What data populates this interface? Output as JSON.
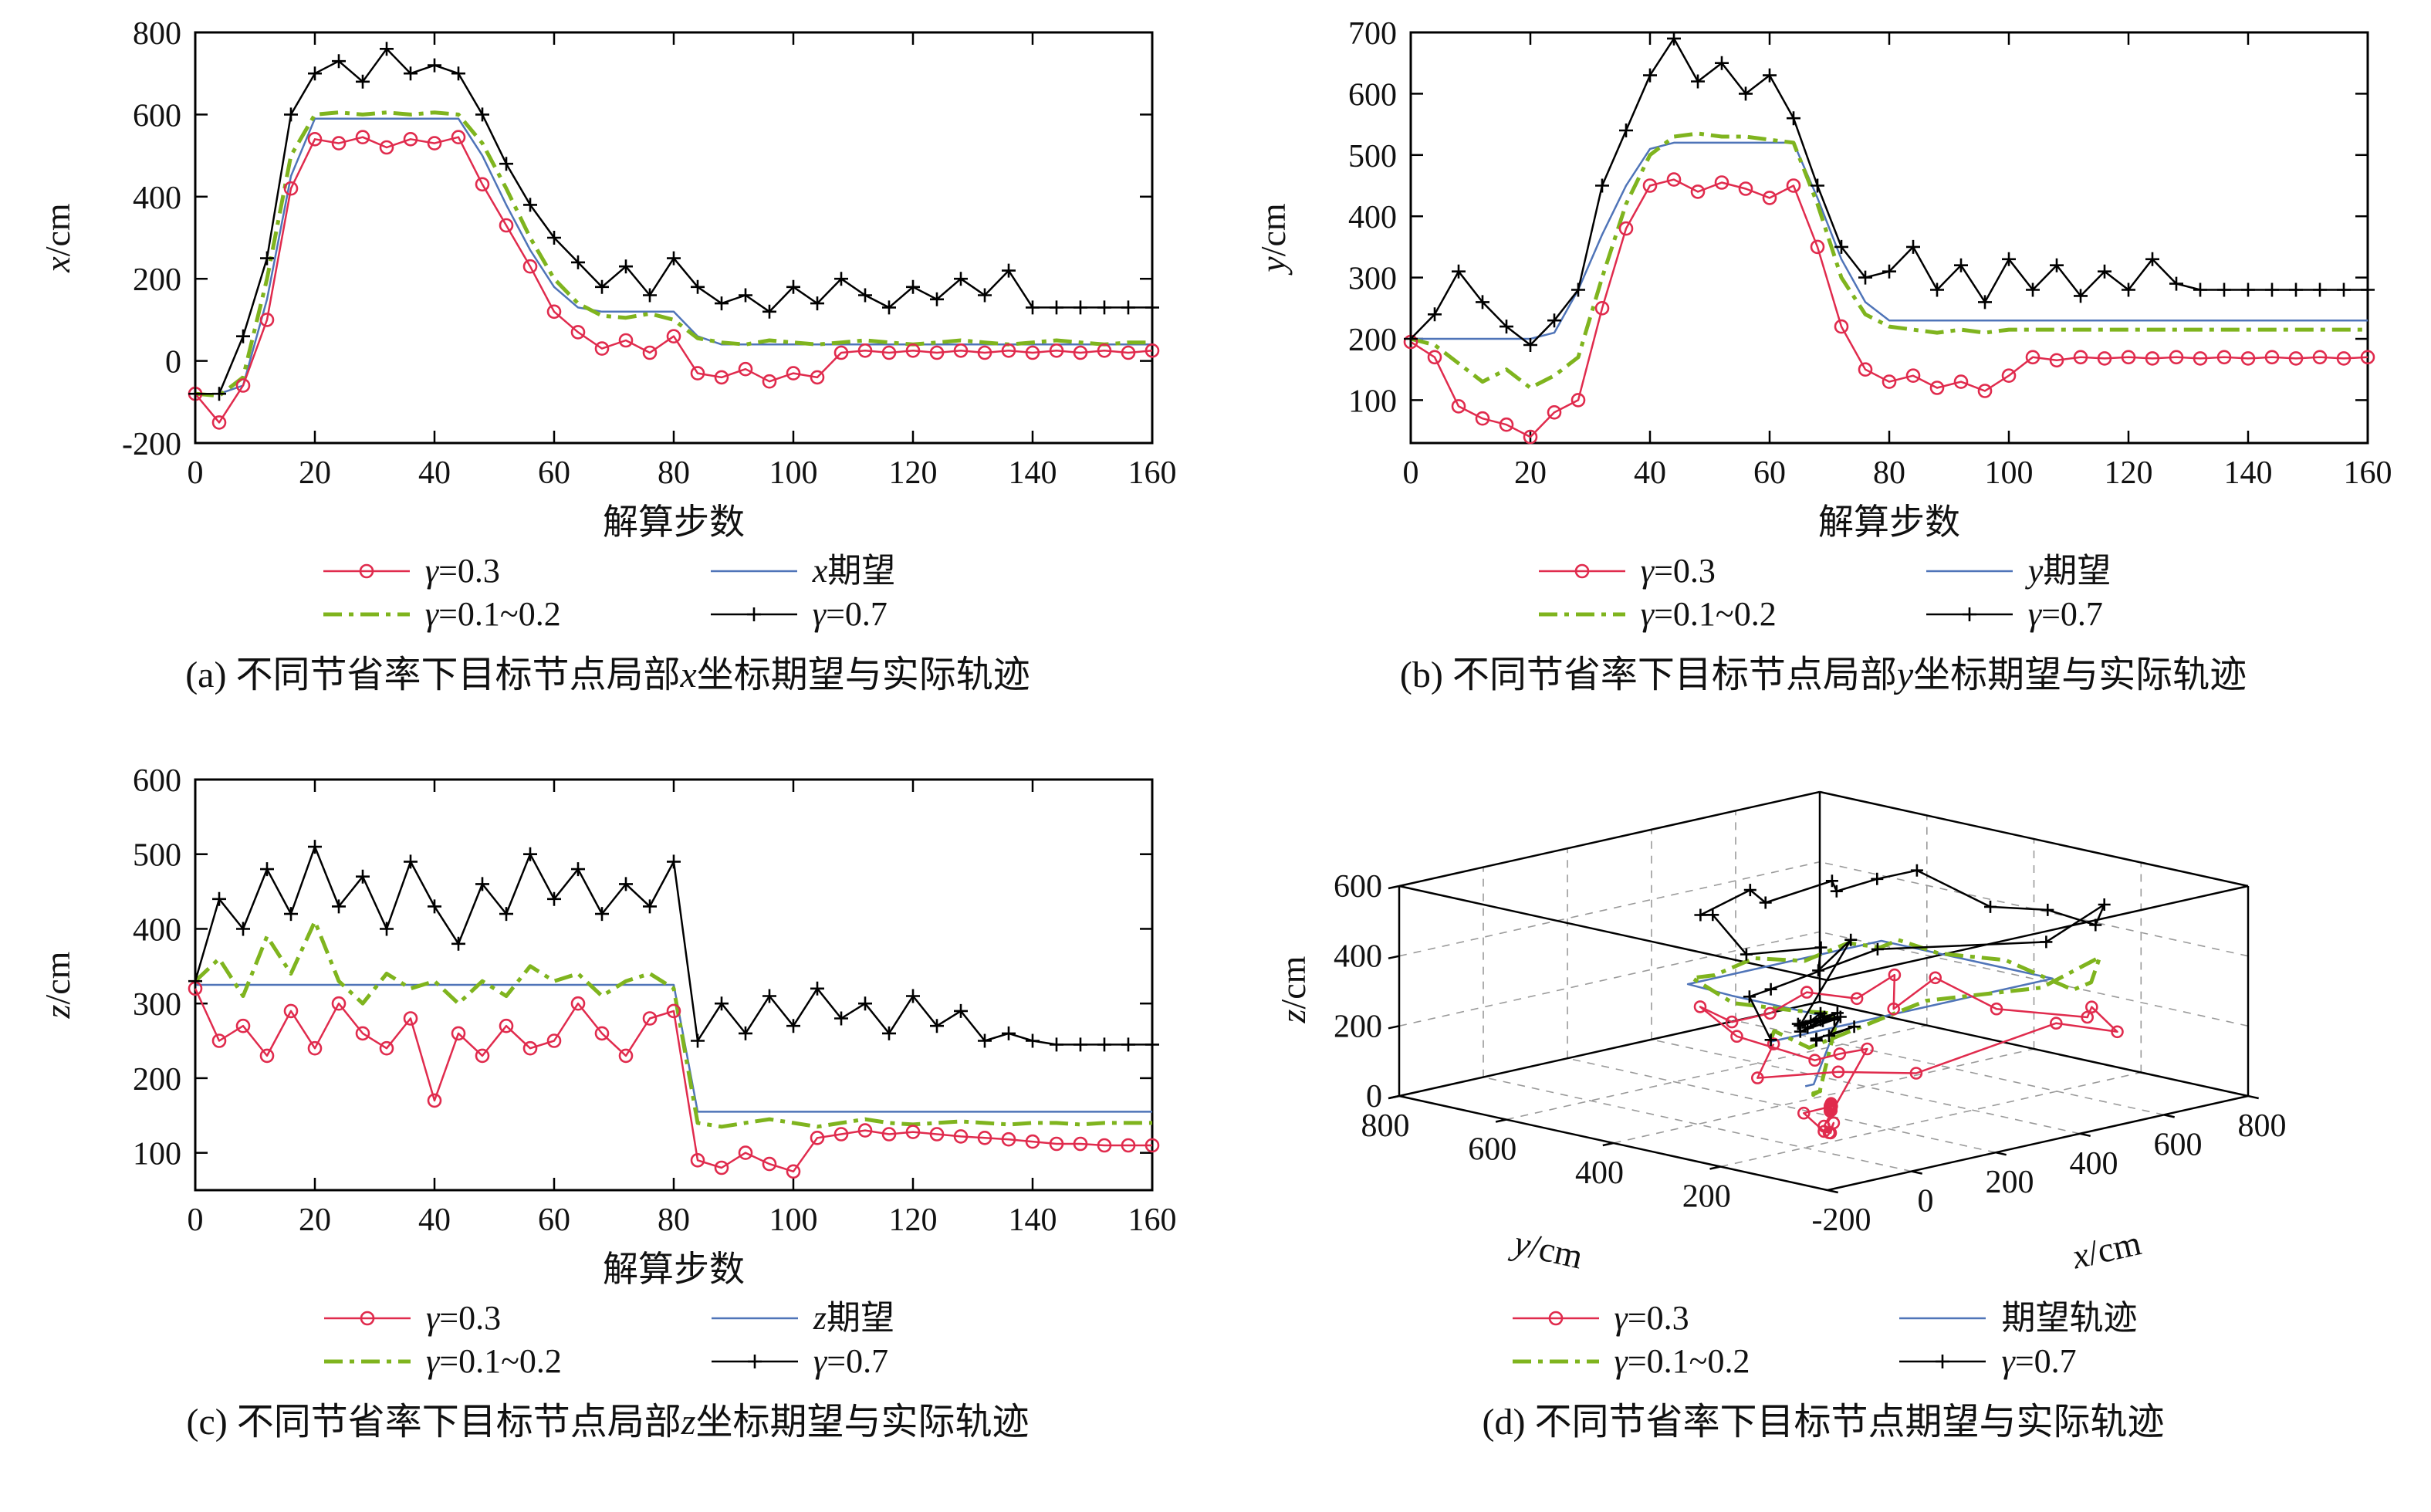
{
  "series_styles": {
    "expected": {
      "color": "#4f74b8",
      "width": 2.5,
      "marker": "none",
      "msize": 0,
      "dash": ""
    },
    "g0102": {
      "color": "#7fb41e",
      "width": 5,
      "marker": "none",
      "msize": 0,
      "dash": "24 9 6 9"
    },
    "g03": {
      "color": "#e02b4d",
      "width": 2.5,
      "marker": "circle",
      "msize": 8,
      "dash": ""
    },
    "g07": {
      "color": "#000000",
      "width": 2.5,
      "marker": "plus",
      "msize": 9,
      "dash": ""
    }
  },
  "chart_data": {
    "type": "line",
    "x_label": "解算步数",
    "x_range": [
      0,
      160
    ],
    "steps": [
      0,
      4,
      8,
      12,
      16,
      20,
      24,
      28,
      32,
      36,
      40,
      44,
      48,
      52,
      56,
      60,
      64,
      68,
      72,
      76,
      80,
      84,
      88,
      92,
      96,
      100,
      104,
      108,
      112,
      116,
      120,
      124,
      128,
      132,
      136,
      140,
      144,
      148,
      152,
      156,
      160
    ],
    "series": {
      "expected": {
        "name": "期望",
        "x": [
          -80,
          -80,
          -60,
          150,
          450,
          590,
          590,
          590,
          590,
          590,
          590,
          590,
          500,
          380,
          270,
          180,
          130,
          120,
          120,
          120,
          120,
          60,
          40,
          40,
          40,
          40,
          40,
          40,
          40,
          40,
          40,
          40,
          40,
          40,
          40,
          40,
          40,
          40,
          40,
          40,
          40
        ],
        "y": [
          200,
          200,
          200,
          200,
          200,
          200,
          210,
          280,
          370,
          450,
          510,
          520,
          520,
          520,
          520,
          520,
          520,
          430,
          330,
          260,
          230,
          230,
          230,
          230,
          230,
          230,
          230,
          230,
          230,
          230,
          230,
          230,
          230,
          230,
          230,
          230,
          230,
          230,
          230,
          230,
          230
        ],
        "z": [
          325,
          325,
          325,
          325,
          325,
          325,
          325,
          325,
          325,
          325,
          325,
          325,
          325,
          325,
          325,
          325,
          325,
          325,
          325,
          325,
          325,
          155,
          155,
          155,
          155,
          155,
          155,
          155,
          155,
          155,
          155,
          155,
          155,
          155,
          155,
          155,
          155,
          155,
          155,
          155,
          155
        ]
      },
      "g0102": {
        "name": "γ=0.1~0.2",
        "x": [
          -80,
          -85,
          -40,
          200,
          500,
          600,
          605,
          600,
          605,
          600,
          605,
          600,
          530,
          420,
          300,
          200,
          140,
          110,
          105,
          115,
          100,
          55,
          45,
          40,
          50,
          45,
          40,
          45,
          50,
          45,
          40,
          45,
          50,
          45,
          40,
          45,
          50,
          45,
          40,
          45,
          45
        ],
        "y": [
          200,
          190,
          160,
          130,
          150,
          120,
          140,
          170,
          300,
          420,
          500,
          530,
          535,
          530,
          530,
          525,
          520,
          420,
          300,
          240,
          220,
          215,
          210,
          215,
          210,
          215,
          215,
          215,
          215,
          215,
          215,
          215,
          215,
          215,
          215,
          215,
          215,
          215,
          215,
          215,
          215
        ],
        "z": [
          330,
          360,
          310,
          390,
          340,
          410,
          330,
          300,
          340,
          320,
          330,
          300,
          330,
          310,
          350,
          330,
          340,
          310,
          330,
          340,
          320,
          140,
          135,
          140,
          145,
          140,
          135,
          140,
          145,
          140,
          138,
          140,
          142,
          140,
          138,
          140,
          140,
          138,
          140,
          140,
          140
        ]
      },
      "g03": {
        "name": "γ=0.3",
        "x": [
          -80,
          -150,
          -60,
          100,
          420,
          540,
          530,
          545,
          520,
          540,
          530,
          545,
          430,
          330,
          230,
          120,
          70,
          30,
          50,
          20,
          60,
          -30,
          -40,
          -20,
          -50,
          -30,
          -40,
          20,
          25,
          20,
          25,
          20,
          25,
          20,
          25,
          20,
          25,
          20,
          25,
          20,
          25
        ],
        "y": [
          195,
          170,
          90,
          70,
          60,
          40,
          80,
          100,
          250,
          380,
          450,
          460,
          440,
          455,
          445,
          430,
          450,
          350,
          220,
          150,
          130,
          140,
          120,
          130,
          115,
          140,
          170,
          165,
          170,
          168,
          170,
          168,
          170,
          168,
          170,
          168,
          170,
          168,
          170,
          168,
          170
        ],
        "z": [
          320,
          250,
          270,
          230,
          290,
          240,
          300,
          260,
          240,
          280,
          170,
          260,
          230,
          270,
          240,
          250,
          300,
          260,
          230,
          280,
          290,
          90,
          80,
          100,
          85,
          75,
          120,
          125,
          130,
          125,
          128,
          125,
          122,
          120,
          118,
          115,
          112,
          112,
          110,
          110,
          110
        ]
      },
      "g07": {
        "name": "γ=0.7",
        "x": [
          -80,
          -80,
          60,
          250,
          600,
          700,
          730,
          680,
          760,
          700,
          720,
          700,
          600,
          480,
          380,
          300,
          240,
          180,
          230,
          160,
          250,
          180,
          140,
          160,
          120,
          180,
          140,
          200,
          160,
          130,
          180,
          150,
          200,
          160,
          220,
          130,
          130,
          130,
          130,
          130,
          130
        ],
        "y": [
          200,
          240,
          310,
          260,
          220,
          190,
          230,
          280,
          450,
          540,
          630,
          690,
          620,
          650,
          600,
          630,
          560,
          450,
          350,
          300,
          310,
          350,
          280,
          320,
          260,
          330,
          280,
          320,
          270,
          310,
          280,
          330,
          290,
          280,
          280,
          280,
          280,
          280,
          280,
          280,
          280
        ],
        "z": [
          330,
          440,
          400,
          480,
          420,
          510,
          430,
          470,
          400,
          490,
          430,
          380,
          460,
          420,
          500,
          440,
          480,
          420,
          460,
          430,
          490,
          250,
          300,
          260,
          310,
          270,
          320,
          280,
          300,
          260,
          310,
          270,
          290,
          250,
          260,
          250,
          245,
          245,
          245,
          245,
          245
        ]
      }
    }
  },
  "charts": {
    "a": {
      "coord": "x",
      "var": "x",
      "unit": "/cm",
      "xlabel": "解算步数",
      "xmin": 0,
      "xmax": 160,
      "xticks": [
        0,
        20,
        40,
        60,
        80,
        100,
        120,
        140,
        160
      ],
      "ymin": -200,
      "ymax": 800,
      "yticks": [
        -200,
        0,
        200,
        400,
        600,
        800
      ],
      "legend": [
        {
          "sym": "γ",
          "rest": "=0.3"
        },
        {
          "sym": "x",
          "rest": "期望"
        },
        {
          "sym": "γ",
          "rest": "=0.1~0.2"
        },
        {
          "sym": "γ",
          "rest": "=0.7"
        }
      ],
      "caption": {
        "pre": "(a) 不同节省率下目标节点局部",
        "var": "x",
        "post": "坐标期望与实际轨迹"
      }
    },
    "b": {
      "coord": "y",
      "var": "y",
      "unit": "/cm",
      "xlabel": "解算步数",
      "xmin": 0,
      "xmax": 160,
      "xticks": [
        0,
        20,
        40,
        60,
        80,
        100,
        120,
        140,
        160
      ],
      "ymin": 30,
      "ymax": 700,
      "yticks": [
        100,
        200,
        300,
        400,
        500,
        600,
        700
      ],
      "legend": [
        {
          "sym": "γ",
          "rest": "=0.3"
        },
        {
          "sym": "y",
          "rest": "期望"
        },
        {
          "sym": "γ",
          "rest": "=0.1~0.2"
        },
        {
          "sym": "γ",
          "rest": "=0.7"
        }
      ],
      "caption": {
        "pre": "(b) 不同节省率下目标节点局部",
        "var": "y",
        "post": "坐标期望与实际轨迹"
      }
    },
    "c": {
      "coord": "z",
      "var": "z",
      "unit": "/cm",
      "xlabel": "解算步数",
      "xmin": 0,
      "xmax": 160,
      "xticks": [
        0,
        20,
        40,
        60,
        80,
        100,
        120,
        140,
        160
      ],
      "ymin": 50,
      "ymax": 600,
      "yticks": [
        100,
        200,
        300,
        400,
        500,
        600
      ],
      "legend": [
        {
          "sym": "γ",
          "rest": "=0.3"
        },
        {
          "sym": "z",
          "rest": "期望"
        },
        {
          "sym": "γ",
          "rest": "=0.1~0.2"
        },
        {
          "sym": "γ",
          "rest": "=0.7"
        }
      ],
      "caption": {
        "pre": "(c) 不同节省率下目标节点局部",
        "var": "z",
        "post": "坐标期望与实际轨迹"
      }
    },
    "d": {
      "xr": [
        -200,
        800
      ],
      "yr": [
        0,
        800
      ],
      "zr": [
        0,
        600
      ],
      "xticks": [
        -200,
        0,
        200,
        400,
        600,
        800
      ],
      "yticks": [
        0,
        200,
        400,
        600,
        800
      ],
      "zticks": [
        0,
        200,
        400,
        600
      ],
      "xvar": "x",
      "yvar": "y",
      "zvar": "z",
      "unit": "/cm",
      "legend": [
        {
          "sym": "γ",
          "rest": "=0.3"
        },
        {
          "sym": "",
          "rest": "期望轨迹"
        },
        {
          "sym": "γ",
          "rest": "=0.1~0.2"
        },
        {
          "sym": "γ",
          "rest": "=0.7"
        }
      ],
      "caption": {
        "pre": "(d) 不同节省率下目标节点期望与实际轨迹",
        "var": "",
        "post": ""
      }
    }
  }
}
